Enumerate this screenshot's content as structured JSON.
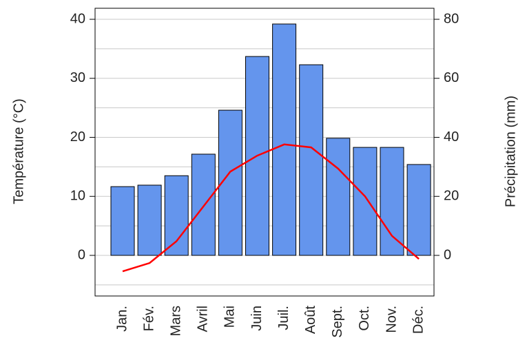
{
  "chart_data": {
    "type": "bar-line",
    "categories": [
      "Jan.",
      "Fév.",
      "Mars",
      "Avril",
      "Mai",
      "Juin",
      "Juil.",
      "Août",
      "Sept.",
      "Oct.",
      "Nov.",
      "Déc."
    ],
    "series": [
      {
        "name": "Précipitation (mm)",
        "type": "bar",
        "axis": "y2",
        "color": "#6495ed",
        "values": [
          23.3,
          23.8,
          27.0,
          34.3,
          49.2,
          67.4,
          78.4,
          64.6,
          39.7,
          36.6,
          36.6,
          30.8
        ]
      },
      {
        "name": "Température (°C)",
        "type": "line",
        "axis": "y",
        "color": "#ff0000",
        "values": [
          -2.7,
          -1.3,
          2.4,
          8.3,
          14.2,
          16.9,
          18.8,
          18.3,
          14.7,
          10.0,
          3.3,
          -0.6
        ]
      }
    ],
    "ylabel": "Température (°C)",
    "y2label": "Précipitation (mm)",
    "ylim": [
      -6.88,
      41.87
    ],
    "yticks": [
      0,
      10,
      20,
      30,
      40
    ],
    "y2lim": [
      -13.76,
      83.74
    ],
    "y2ticks": [
      0,
      20,
      40,
      60,
      80
    ],
    "grid": true,
    "ygrid": [
      -5,
      0,
      5,
      10,
      15,
      20,
      25,
      30,
      35,
      40
    ]
  }
}
